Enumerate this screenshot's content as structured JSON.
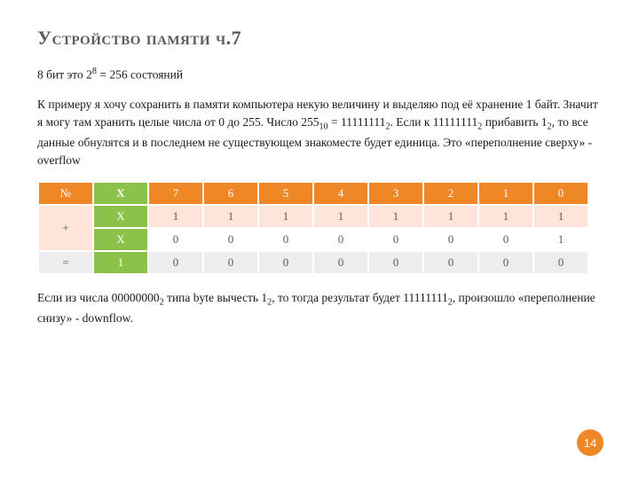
{
  "title": "Устройство памяти ч.7",
  "line1_a": "8 бит это  2",
  "line1_sup": "8",
  "line1_b": " = 256 состояний",
  "para2_a": "К примеру я хочу сохранить в памяти компьютера некую величину и выделяю под её хранение 1 байт. Значит я могу там хранить целые числа от 0 до 255. Число 255",
  "para2_s1": "10",
  "para2_b": " = 11111111",
  "para2_s2": "2",
  "para2_c": ". Если к 11111111",
  "para2_s3": "2",
  "para2_d": " прибавить 1",
  "para2_s4": "2",
  "para2_e": ", то все данные обнулятся и в последнем не существующем знакоместе будет единица. Это «переполнение сверху» - overflow",
  "table": {
    "header": [
      "№",
      "X",
      "7",
      "6",
      "5",
      "4",
      "3",
      "2",
      "1",
      "0"
    ],
    "row_plus_label": "+",
    "rowX1": [
      "X",
      "1",
      "1",
      "1",
      "1",
      "1",
      "1",
      "1",
      "1"
    ],
    "rowX2": [
      "X",
      "0",
      "0",
      "0",
      "0",
      "0",
      "0",
      "0",
      "1"
    ],
    "row_eq_label": "=",
    "row_eq": [
      "1",
      "0",
      "0",
      "0",
      "0",
      "0",
      "0",
      "0",
      "0"
    ],
    "colors": {
      "header_bg": "#f08726",
      "header_fg": "#ffffff",
      "green_bg": "#8bc34a",
      "band_bg": "#fde6d9",
      "gray_bg": "#ededed",
      "cell_fg": "#5a5a5a"
    }
  },
  "para3_a": "Если из числа 00000000",
  "para3_s1": "2",
  "para3_b": " типа byte вычесть 1",
  "para3_s2": "2",
  "para3_c": ", то тогда результат будет 11111111",
  "para3_s3": "2",
  "para3_d": ", произошло «переполнение снизу» - downflow.",
  "page_number": "14"
}
